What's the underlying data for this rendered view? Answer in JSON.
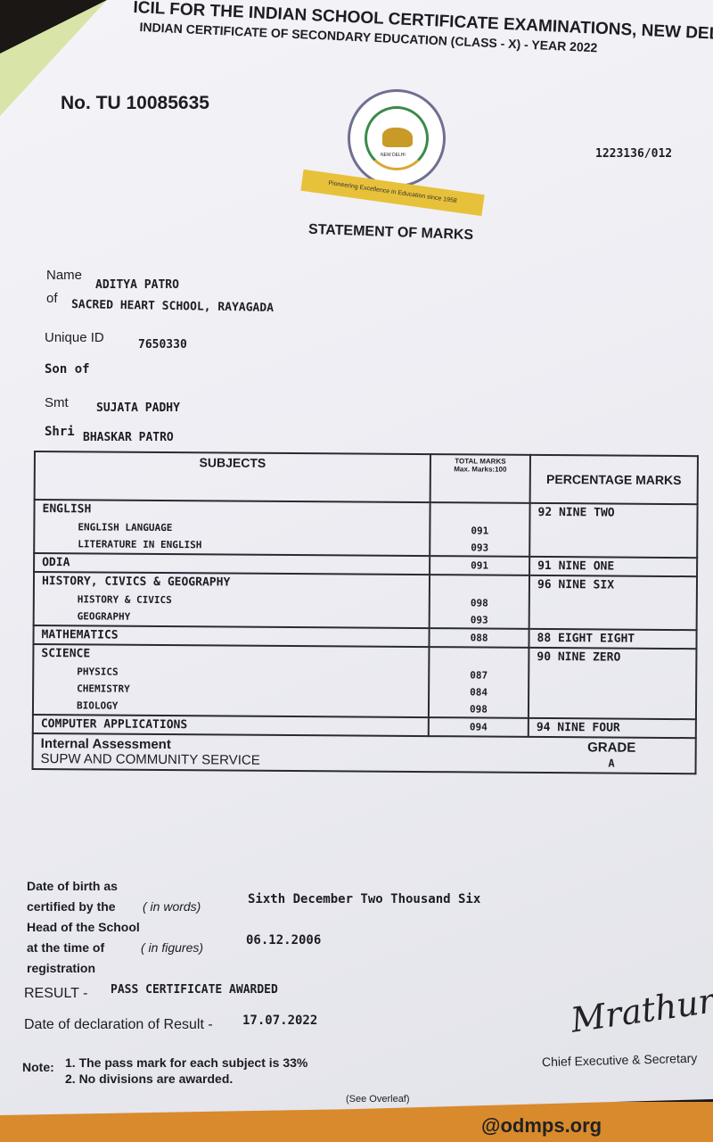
{
  "header": {
    "line1": "ICIL FOR THE INDIAN SCHOOL CERTIFICATE EXAMINATIONS, NEW DELHI",
    "line2": "INDIAN CERTIFICATE OF SECONDARY EDUCATION (CLASS - X) - YEAR 2022",
    "certificate_no": "No. TU 10085635",
    "reference": "1223136/012",
    "logo_ribbon": "Pioneering Excellence in Education since 1958",
    "logo_text": "NEW DELHI",
    "title": "STATEMENT OF MARKS"
  },
  "student": {
    "name_label": "Name",
    "name": "ADITYA PATRO",
    "school_label": "of",
    "school": "SACRED HEART SCHOOL, RAYAGADA",
    "uid_label": "Unique ID",
    "uid": "7650330",
    "son_of": "Son of",
    "mother_label": "Smt",
    "mother": "SUJATA PADHY",
    "father_label": "Shri",
    "father": "BHASKAR PATRO"
  },
  "table": {
    "headers": {
      "subjects": "SUBJECTS",
      "total": "TOTAL MARKS",
      "total_sub": "Max. Marks:100",
      "percentage": "PERCENTAGE MARKS"
    },
    "rows": [
      {
        "subject": "ENGLISH",
        "subs": [
          {
            "name": "ENGLISH LANGUAGE",
            "marks": "091"
          },
          {
            "name": "LITERATURE IN ENGLISH",
            "marks": "093"
          }
        ],
        "percentage": "92 NINE TWO"
      },
      {
        "subject": "ODIA",
        "marks": "091",
        "percentage": "91 NINE ONE"
      },
      {
        "subject": "HISTORY, CIVICS & GEOGRAPHY",
        "subs": [
          {
            "name": "HISTORY & CIVICS",
            "marks": "098"
          },
          {
            "name": "GEOGRAPHY",
            "marks": "093"
          }
        ],
        "percentage": "96 NINE SIX"
      },
      {
        "subject": "MATHEMATICS",
        "marks": "088",
        "percentage": "88 EIGHT EIGHT"
      },
      {
        "subject": "SCIENCE",
        "subs": [
          {
            "name": "PHYSICS",
            "marks": "087"
          },
          {
            "name": "CHEMISTRY",
            "marks": "084"
          },
          {
            "name": "BIOLOGY",
            "marks": "098"
          }
        ],
        "percentage": "90 NINE ZERO"
      },
      {
        "subject": "COMPUTER APPLICATIONS",
        "marks": "094",
        "percentage": "94 NINE FOUR"
      }
    ],
    "internal": {
      "label": "Internal Assessment",
      "grade_label": "GRADE",
      "item": "SUPW AND COMMUNITY SERVICE",
      "grade": "A"
    }
  },
  "dob": {
    "l1": "Date of birth as",
    "l2": "certified by the",
    "l3": "Head of the School",
    "l4": "at the time of",
    "l5": "registration",
    "words_label": "( in words)",
    "words": "Sixth December Two Thousand Six",
    "figures_label": "( in figures)",
    "figures": "06.12.2006"
  },
  "result": {
    "label": "RESULT -",
    "value": "PASS CERTIFICATE AWARDED",
    "date_label": "Date of declaration of Result -",
    "date": "17.07.2022"
  },
  "notes": {
    "label": "Note:",
    "n1": "1. The pass mark for each subject is 33%",
    "n2": "2. No divisions are awarded."
  },
  "signatory": {
    "signature": "Mrathur.",
    "title": "Chief Executive & Secretary"
  },
  "footer": {
    "overleaf": "(See Overleaf)",
    "background_text": "@odmps.org"
  }
}
